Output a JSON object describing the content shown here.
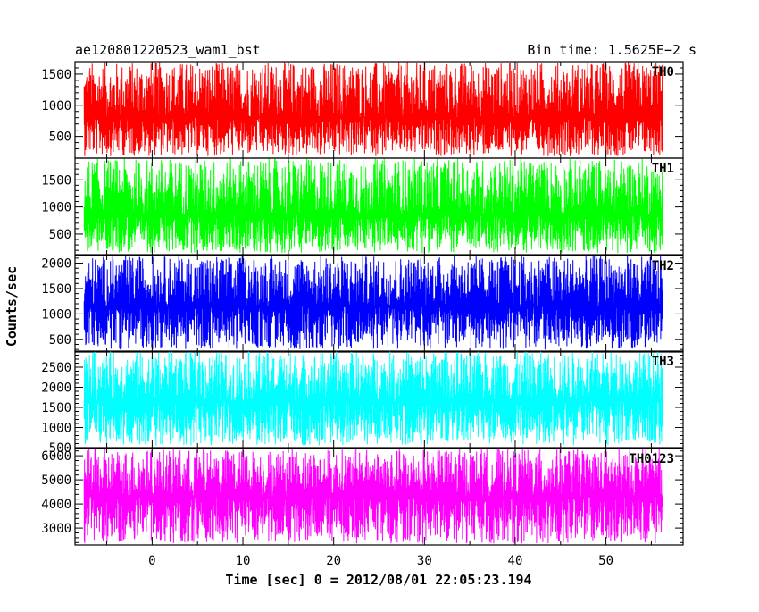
{
  "chart_data": {
    "type": "line",
    "title_left": "ae120801220523_wam1_bst",
    "title_right": "Bin time: 1.5625E−2 s",
    "xlabel": "Time [sec] 0 = 2012/08/01 22:05:23.194",
    "ylabel": "Counts/sec",
    "xlim": [
      -8.5,
      58.5
    ],
    "x_ticks": [
      0,
      10,
      20,
      30,
      40,
      50
    ],
    "x_data_range": [
      -7.5,
      56.3
    ],
    "panels": [
      {
        "name": "TH0",
        "color": "#ff0000",
        "ylim": [
          150,
          1700
        ],
        "y_ticks": [
          500,
          1000,
          1500
        ],
        "mean": 800,
        "high": 1700,
        "low": 180
      },
      {
        "name": "TH1",
        "color": "#00ff00",
        "ylim": [
          120,
          1900
        ],
        "y_ticks": [
          500,
          1000,
          1500
        ],
        "mean": 850,
        "high": 1900,
        "low": 150
      },
      {
        "name": "TH2",
        "color": "#0000ff",
        "ylim": [
          250,
          2150
        ],
        "y_ticks": [
          500,
          1000,
          1500,
          2000
        ],
        "mean": 1150,
        "high": 2150,
        "low": 300
      },
      {
        "name": "TH3",
        "color": "#00ffff",
        "ylim": [
          500,
          2900
        ],
        "y_ticks": [
          500,
          1000,
          1500,
          2000,
          2500
        ],
        "mean": 1650,
        "high": 2900,
        "low": 550
      },
      {
        "name": "TH0123",
        "color": "#ff00ff",
        "ylim": [
          2300,
          6300
        ],
        "y_ticks": [
          3000,
          4000,
          5000,
          6000
        ],
        "mean": 4300,
        "high": 6300,
        "low": 2350
      }
    ]
  }
}
